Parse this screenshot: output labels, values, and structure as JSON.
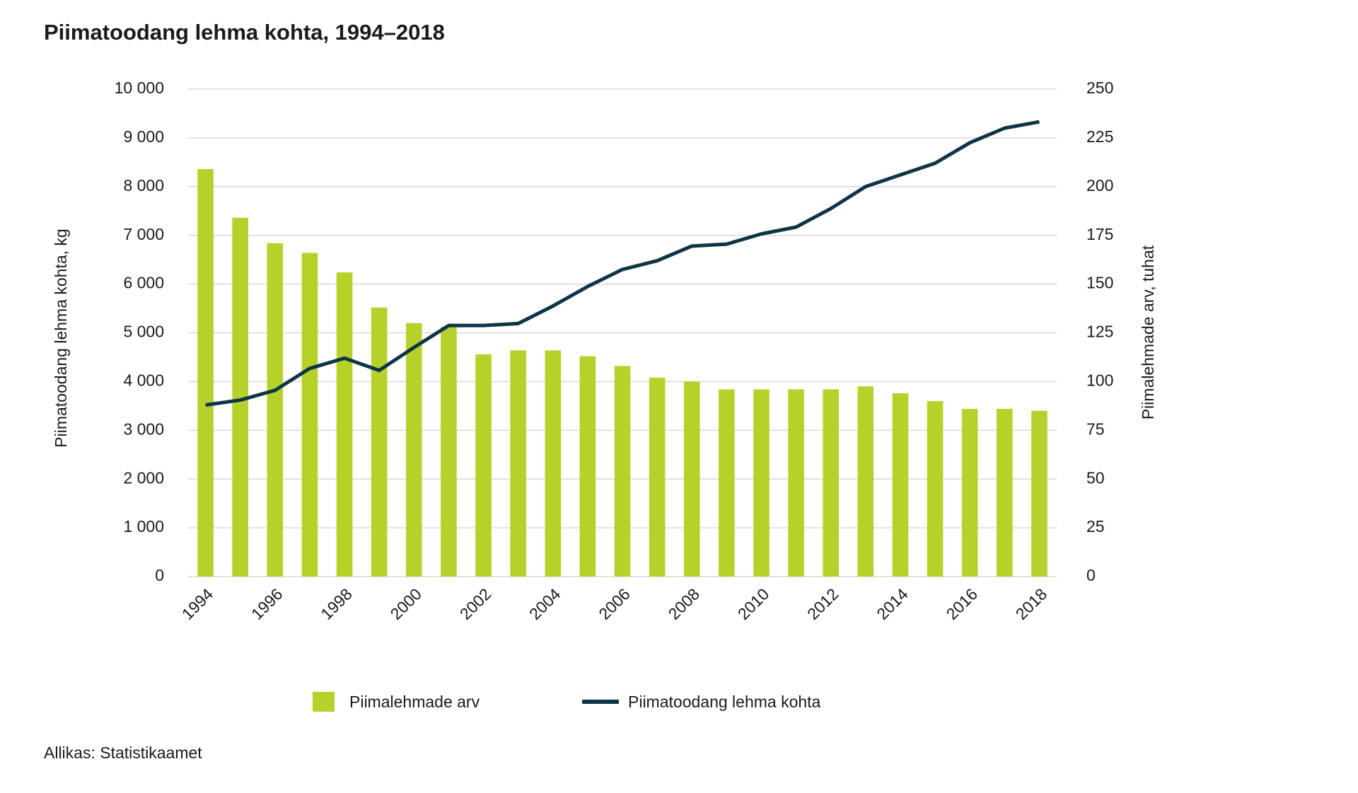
{
  "chart_data": {
    "type": "bar-line",
    "title": "Piimatoodang lehma kohta, 1994–2018",
    "y_label": "Piimatoodang lehma kohta, kg",
    "y2_label": "Piimalehmade arv, tuhat",
    "source": "Allikas: Statistikaamet",
    "categories": [
      "1994",
      null,
      "1996",
      null,
      "1998",
      null,
      "2000",
      null,
      "2002",
      null,
      "2004",
      null,
      "2006",
      null,
      "2008",
      null,
      "2010",
      null,
      "2012",
      null,
      "2014",
      null,
      "2016",
      null,
      "2018"
    ],
    "series": [
      {
        "name": "Piimalehmade arv",
        "type": "bar",
        "axis": "y2",
        "color": "#b5d12a",
        "values": [
          209,
          184,
          171,
          166,
          156,
          138,
          130,
          128,
          114,
          116,
          116,
          113,
          108,
          102,
          100,
          96,
          96,
          96,
          96,
          97.5,
          94,
          90,
          86,
          86,
          85
        ]
      },
      {
        "name": "Piimatoodang lehma kohta",
        "type": "line",
        "color": "#0d3547",
        "values": [
          3520,
          3620,
          3820,
          4270,
          4480,
          4230,
          4700,
          5150,
          5150,
          5190,
          5550,
          5950,
          6300,
          6480,
          6780,
          6820,
          7030,
          7170,
          7550,
          8000,
          8240,
          8480,
          8900,
          9200,
          9330
        ]
      }
    ],
    "ylim": [
      0,
      10000
    ],
    "yticks": [
      0,
      {
        "value": 1000,
        "label": "1 000"
      },
      {
        "value": 2000,
        "label": "2 000"
      },
      {
        "value": 3000,
        "label": "3 000"
      },
      {
        "value": 4000,
        "label": "4 000"
      },
      {
        "value": 5000,
        "label": "5 000"
      },
      {
        "value": 6000,
        "label": "6 000"
      },
      {
        "value": 7000,
        "label": "7 000"
      },
      {
        "value": 8000,
        "label": "8 000"
      },
      {
        "value": 9000,
        "label": "9 000"
      },
      {
        "value": 10000,
        "label": "10 000"
      }
    ],
    "y2lim": [
      0,
      250
    ],
    "y2ticks": [
      0,
      25,
      50,
      75,
      100,
      125,
      150,
      175,
      200,
      225,
      250
    ],
    "grid": true
  }
}
